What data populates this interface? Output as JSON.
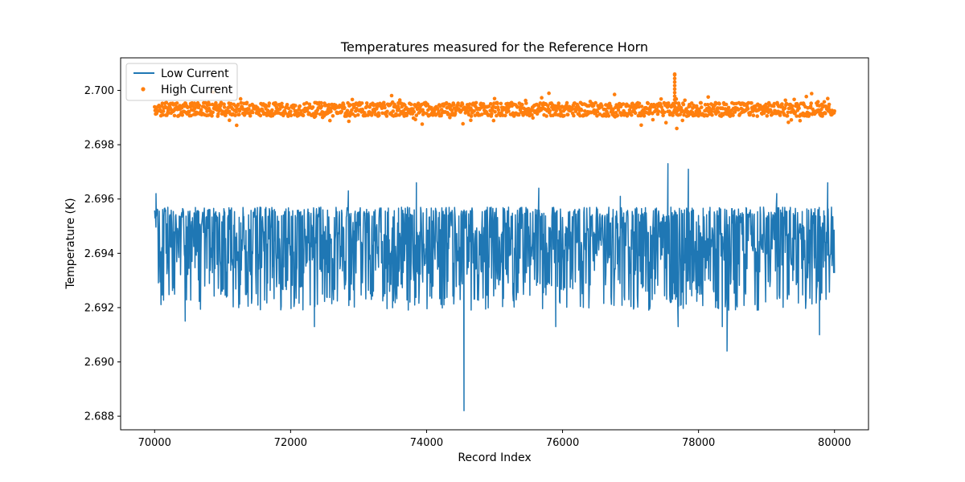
{
  "chart_data": {
    "type": "line",
    "title": "Temperatures measured for the Reference Horn",
    "xlabel": "Record Index",
    "ylabel": "Temperature (K)",
    "xlim": [
      69500,
      80500
    ],
    "ylim": [
      2.6875,
      2.7012
    ],
    "xticks": [
      70000,
      72000,
      74000,
      76000,
      78000,
      80000
    ],
    "yticks": [
      2.688,
      2.69,
      2.692,
      2.694,
      2.696,
      2.698,
      2.7
    ],
    "ytick_labels": [
      "2.688",
      "2.690",
      "2.692",
      "2.694",
      "2.696",
      "2.698",
      "2.700"
    ],
    "grid": false,
    "legend_position": "upper-left",
    "series": [
      {
        "name": "Low Current",
        "kind": "line",
        "color": "#1f77b4",
        "x_range": [
          70000,
          80000
        ],
        "baseline": 2.6942,
        "typical_range": [
          2.6925,
          2.6957
        ],
        "notable_points": [
          {
            "x": 70020,
            "y": 2.6962
          },
          {
            "x": 70450,
            "y": 2.6915
          },
          {
            "x": 71900,
            "y": 2.6935
          },
          {
            "x": 72350,
            "y": 2.6913
          },
          {
            "x": 72850,
            "y": 2.6963
          },
          {
            "x": 73850,
            "y": 2.6966
          },
          {
            "x": 74550,
            "y": 2.6882
          },
          {
            "x": 75650,
            "y": 2.6964
          },
          {
            "x": 75900,
            "y": 2.6913
          },
          {
            "x": 76850,
            "y": 2.6961
          },
          {
            "x": 77550,
            "y": 2.6973
          },
          {
            "x": 77700,
            "y": 2.6913
          },
          {
            "x": 77850,
            "y": 2.6971
          },
          {
            "x": 78350,
            "y": 2.6913
          },
          {
            "x": 78420,
            "y": 2.6904
          },
          {
            "x": 79150,
            "y": 2.6962
          },
          {
            "x": 79780,
            "y": 2.691
          },
          {
            "x": 79900,
            "y": 2.6966
          }
        ]
      },
      {
        "name": "High Current",
        "kind": "scatter",
        "color": "#ff7f0e",
        "x_range": [
          70000,
          80000
        ],
        "baseline": 2.6993,
        "typical_range": [
          2.699,
          2.6996
        ],
        "notable_points": [
          {
            "x": 77650,
            "y": 2.7006
          },
          {
            "x": 77680,
            "y": 2.6986
          },
          {
            "x": 71100,
            "y": 2.6989
          },
          {
            "x": 74650,
            "y": 2.6989
          },
          {
            "x": 79900,
            "y": 2.6997
          }
        ]
      }
    ]
  }
}
